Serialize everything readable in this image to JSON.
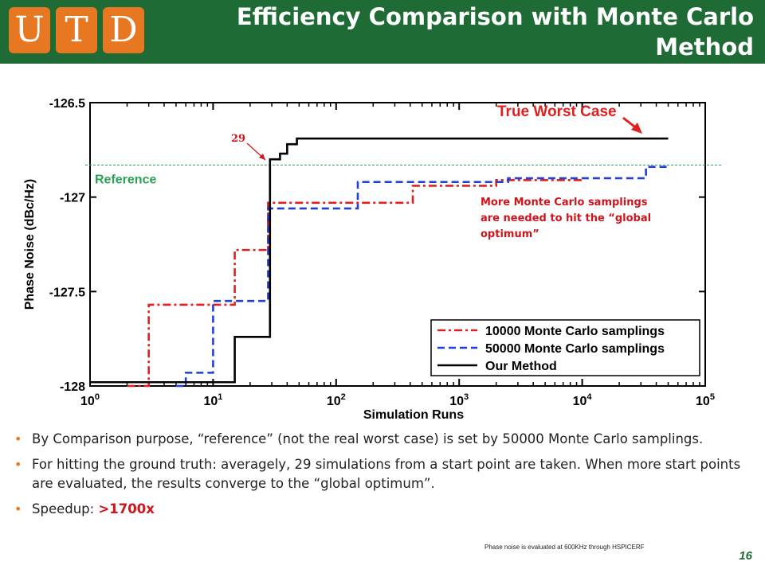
{
  "header": {
    "logo_letters": [
      "U",
      "T",
      "D"
    ],
    "title": "Efficiency Comparison with Monte Carlo Method",
    "bg_color": "#1f6b35",
    "logo_color": "#e87722"
  },
  "chart_data": {
    "type": "line",
    "xlabel": "Simulation Runs",
    "ylabel": "Phase Noise (dBc/Hz)",
    "xscale": "log",
    "xlim": [
      1,
      100000
    ],
    "ylim": [
      -128,
      -126.5
    ],
    "x_ticks": [
      {
        "value": 1,
        "base": "10",
        "exp": "0"
      },
      {
        "value": 10,
        "base": "10",
        "exp": "1"
      },
      {
        "value": 100,
        "base": "10",
        "exp": "2"
      },
      {
        "value": 1000,
        "base": "10",
        "exp": "3"
      },
      {
        "value": 10000,
        "base": "10",
        "exp": "4"
      },
      {
        "value": 100000,
        "base": "10",
        "exp": "5"
      }
    ],
    "y_ticks": [
      {
        "value": -126.5,
        "label": "-126.5"
      },
      {
        "value": -127,
        "label": "-127"
      },
      {
        "value": -127.5,
        "label": "-127.5"
      },
      {
        "value": -128,
        "label": "-128"
      }
    ],
    "legend_position": "bottom-right",
    "series": [
      {
        "name": "10000 Monte Carlo samplings",
        "color": "#e0201f",
        "style": "dashdot",
        "x": [
          2,
          3,
          8,
          15,
          15,
          26,
          28,
          28,
          400,
          420,
          1000,
          2000,
          10000
        ],
        "y": [
          -128,
          -127.57,
          -127.57,
          -127.28,
          -127.28,
          -127.28,
          -127.03,
          -127.03,
          -127.03,
          -126.94,
          -126.94,
          -126.91,
          -126.91
        ]
      },
      {
        "name": "50000 Monte Carlo samplings",
        "color": "#1f3fd8",
        "style": "dashed",
        "x": [
          5,
          6,
          9,
          10,
          28,
          28,
          150,
          150,
          2500,
          2500,
          30000,
          33000,
          50000
        ],
        "y": [
          -128,
          -127.93,
          -127.93,
          -127.55,
          -127.55,
          -127.06,
          -127.06,
          -126.92,
          -126.92,
          -126.9,
          -126.9,
          -126.84,
          -126.84
        ]
      },
      {
        "name": "Our Method",
        "color": "#000000",
        "style": "solid",
        "x": [
          1,
          14,
          15,
          29,
          29,
          35,
          40,
          48,
          50000
        ],
        "y": [
          -127.98,
          -127.98,
          -127.74,
          -127.74,
          -126.8,
          -126.77,
          -126.72,
          -126.69,
          -126.69
        ]
      }
    ],
    "reference": {
      "label": "Reference",
      "y": -126.83,
      "color": "#2aa155"
    },
    "annotations": {
      "true_worst_case": "True Worst Case",
      "point_label": "29",
      "note": "More Monte Carlo samplings are needed to hit the “global optimum”"
    }
  },
  "bullets": [
    {
      "text": "By Comparison purpose, “reference” (not the real worst case) is set by 50000 Monte Carlo samplings."
    },
    {
      "text": "For hitting the ground truth: averagely, 29 simulations from a start point are taken.  When more start points are evaluated, the results converge to the “global optimum”."
    },
    {
      "prefix": "Speedup: ",
      "highlight": ">1700x"
    }
  ],
  "footnote": "Phase noise is evaluated at 600KHz  through HSPICERF",
  "page_number": "16"
}
